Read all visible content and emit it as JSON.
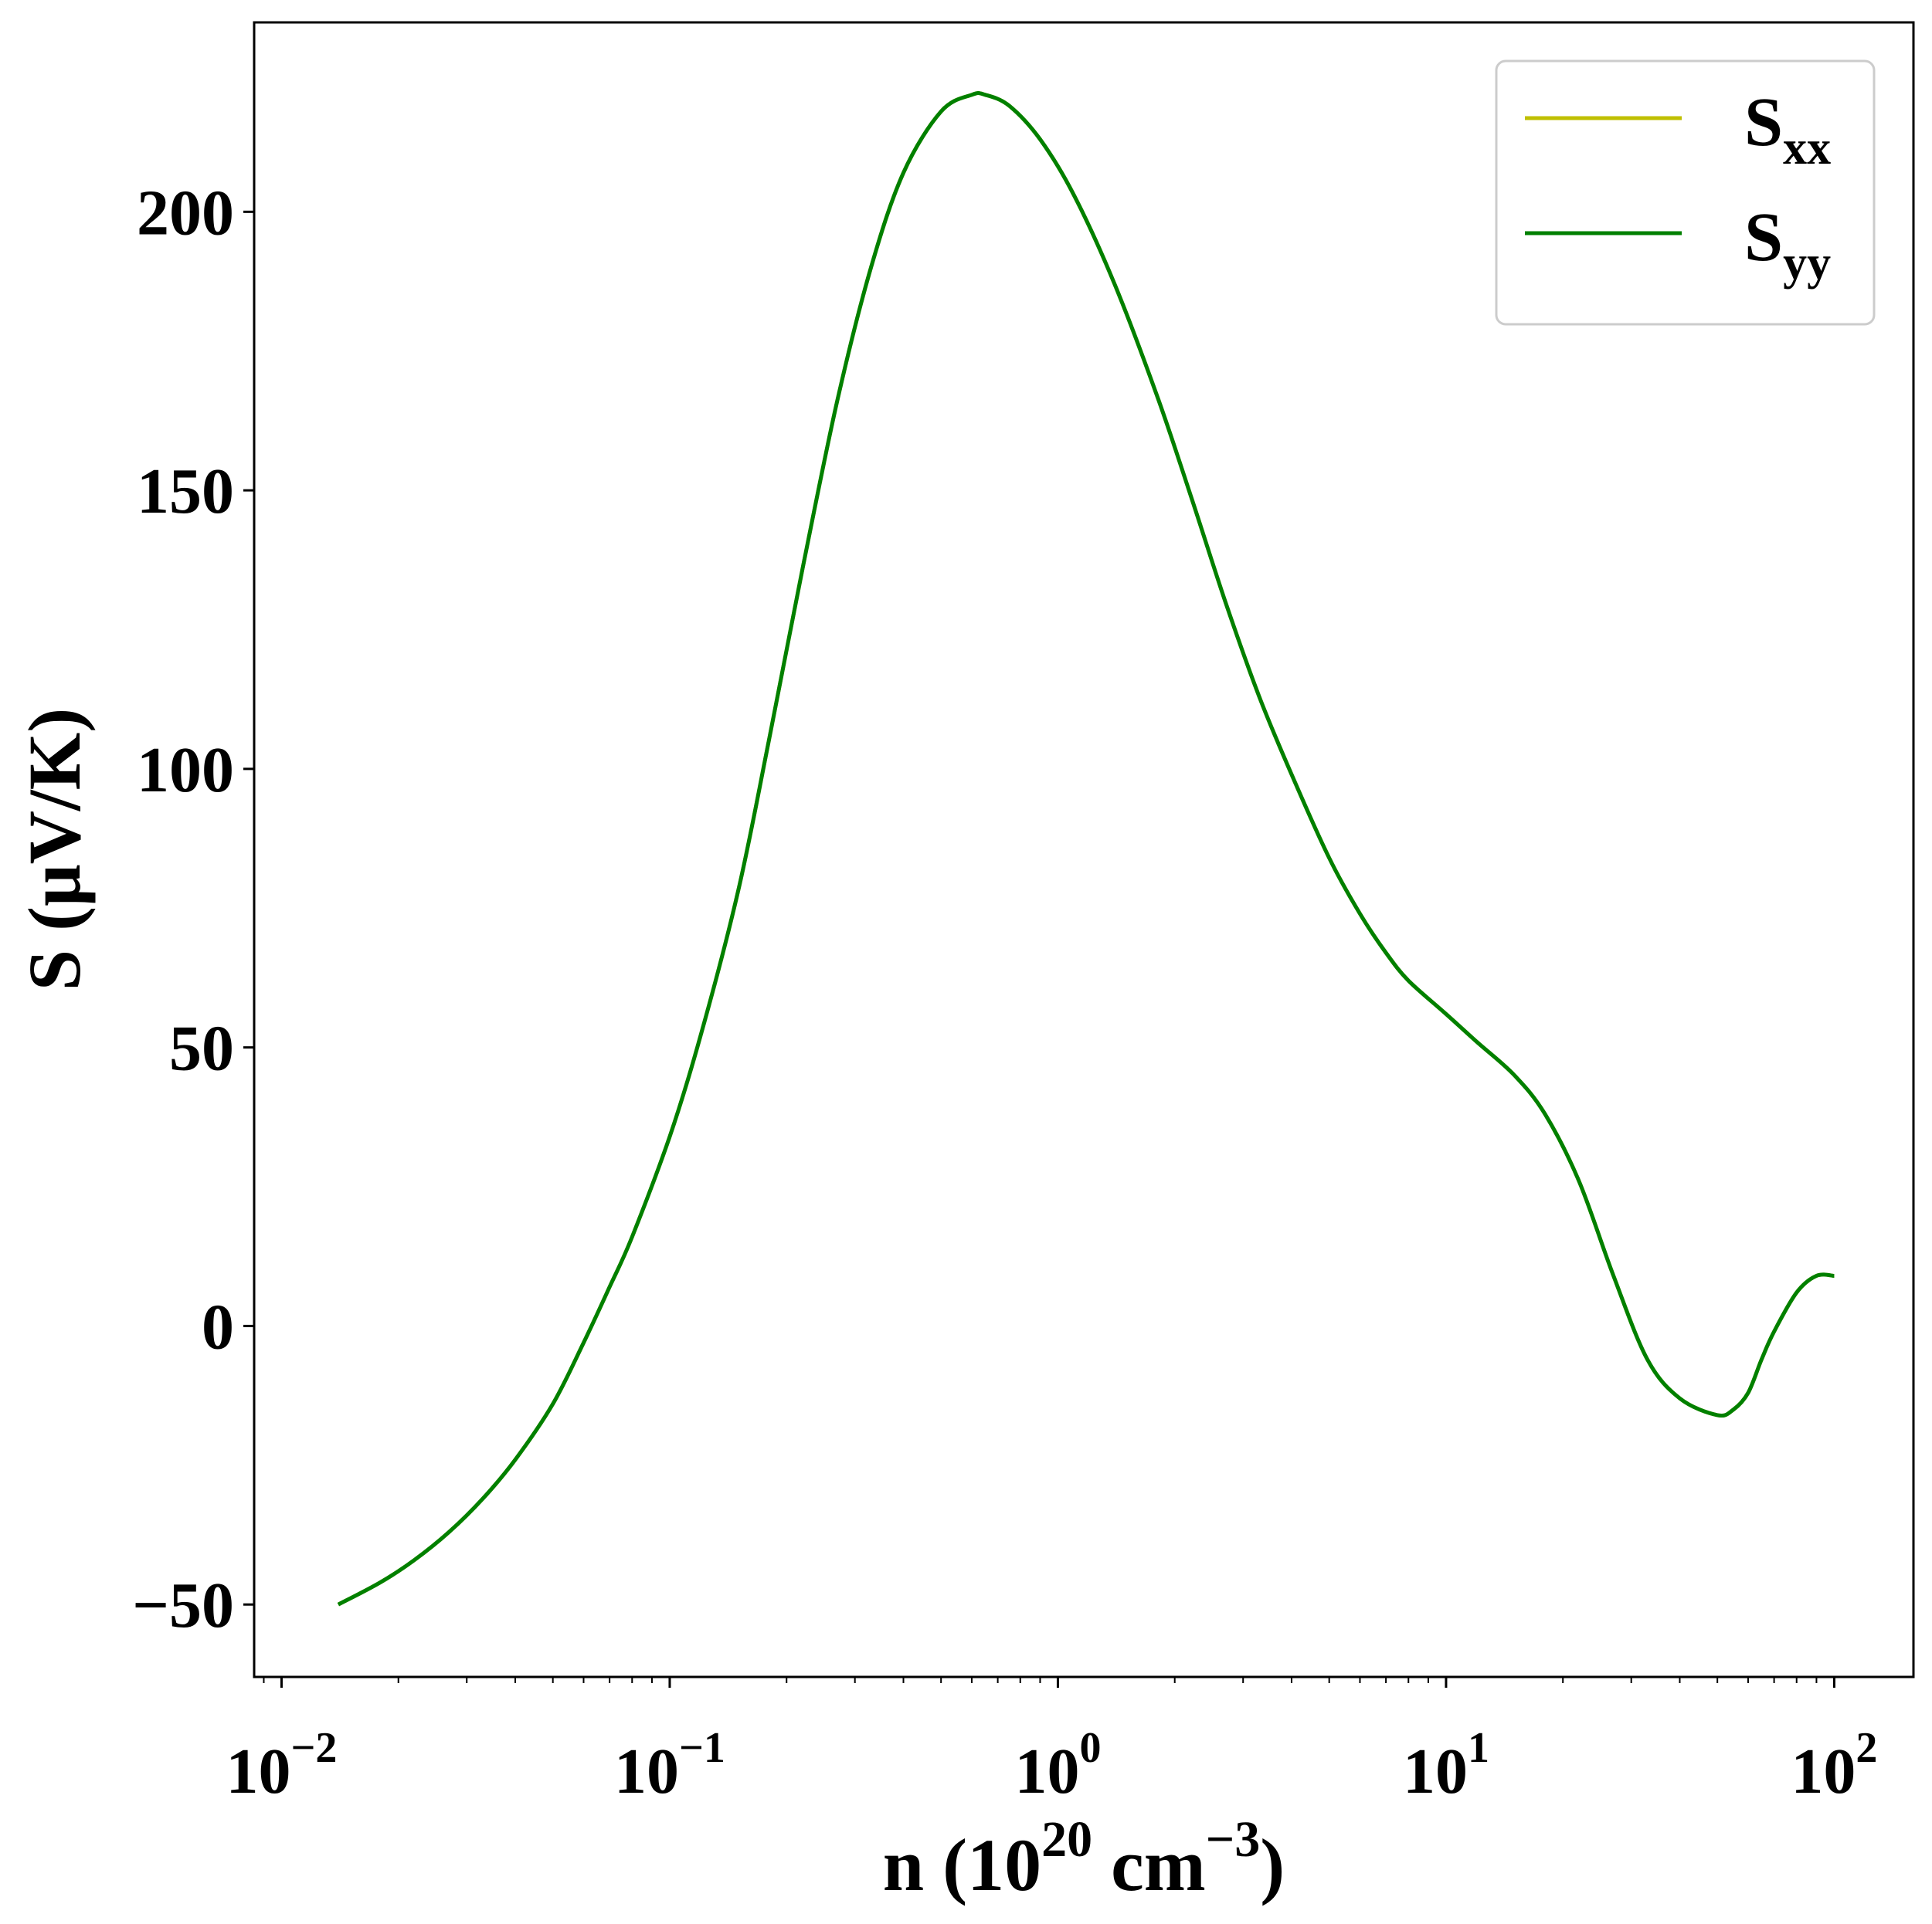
{
  "chart_data": {
    "type": "line",
    "xscale": "log",
    "xlim": [
      0.0085,
      160
    ],
    "ylim": [
      -63,
      234
    ],
    "xlabel": {
      "prefix": "n (10",
      "exponent": "20",
      "unit": " cm",
      "unit_exponent": "−3",
      "suffix": ")"
    },
    "ylabel": "S (μV/K)",
    "xticks": [
      {
        "value": 0.01,
        "base": "10",
        "exp": "−2"
      },
      {
        "value": 0.1,
        "base": "10",
        "exp": "−1"
      },
      {
        "value": 1,
        "base": "10",
        "exp": "0"
      },
      {
        "value": 10,
        "base": "10",
        "exp": "1"
      },
      {
        "value": 100,
        "base": "10",
        "exp": "2"
      }
    ],
    "yticks": [
      {
        "value": -50,
        "label": "−50"
      },
      {
        "value": 0,
        "label": "0"
      },
      {
        "value": 50,
        "label": "50"
      },
      {
        "value": 100,
        "label": "100"
      },
      {
        "value": 150,
        "label": "150"
      },
      {
        "value": 200,
        "label": "200"
      }
    ],
    "grid": false,
    "legend_position": "top-right",
    "series": [
      {
        "name": "S",
        "subscript": "xx",
        "color": "#bfbf00",
        "x": [
          0.014,
          0.018,
          0.022,
          0.027,
          0.033,
          0.04,
          0.05,
          0.06,
          0.07,
          0.08,
          0.1,
          0.12,
          0.15,
          0.18,
          0.22,
          0.27,
          0.33,
          0.4,
          0.5,
          0.6,
          0.65,
          0.75,
          0.9,
          1.1,
          1.4,
          1.8,
          2.2,
          2.7,
          3.3,
          4,
          5,
          6,
          7,
          8,
          10,
          12,
          15,
          18,
          22,
          27,
          33,
          40,
          50,
          55,
          60,
          65,
          70,
          80,
          90,
          100
        ],
        "y": [
          -50,
          -46,
          -42,
          -37,
          -31,
          -24,
          -14,
          -3,
          7,
          16,
          34,
          52,
          78,
          105,
          136,
          166,
          190,
          207,
          218,
          221,
          221,
          219,
          213,
          203,
          187,
          167,
          149,
          130,
          113,
          99,
          84,
          74,
          67,
          62,
          56,
          51,
          45,
          38,
          26,
          9,
          -6,
          -13,
          -16,
          -15,
          -12,
          -6,
          -1,
          6,
          9,
          9
        ]
      },
      {
        "name": "S",
        "subscript": "yy",
        "color": "#008000",
        "x": [
          0.014,
          0.018,
          0.022,
          0.027,
          0.033,
          0.04,
          0.05,
          0.06,
          0.07,
          0.08,
          0.1,
          0.12,
          0.15,
          0.18,
          0.22,
          0.27,
          0.33,
          0.4,
          0.5,
          0.6,
          0.65,
          0.75,
          0.9,
          1.1,
          1.4,
          1.8,
          2.2,
          2.7,
          3.3,
          4,
          5,
          6,
          7,
          8,
          10,
          12,
          15,
          18,
          22,
          27,
          33,
          40,
          50,
          55,
          60,
          65,
          70,
          80,
          90,
          100
        ],
        "y": [
          -50,
          -46,
          -42,
          -37,
          -31,
          -24,
          -14,
          -3,
          7,
          16,
          34,
          52,
          78,
          105,
          136,
          166,
          190,
          207,
          218,
          221,
          221,
          219,
          213,
          203,
          187,
          167,
          149,
          130,
          113,
          99,
          84,
          74,
          67,
          62,
          56,
          51,
          45,
          38,
          26,
          9,
          -6,
          -13,
          -16,
          -15,
          -12,
          -6,
          -1,
          6,
          9,
          9
        ]
      }
    ]
  }
}
